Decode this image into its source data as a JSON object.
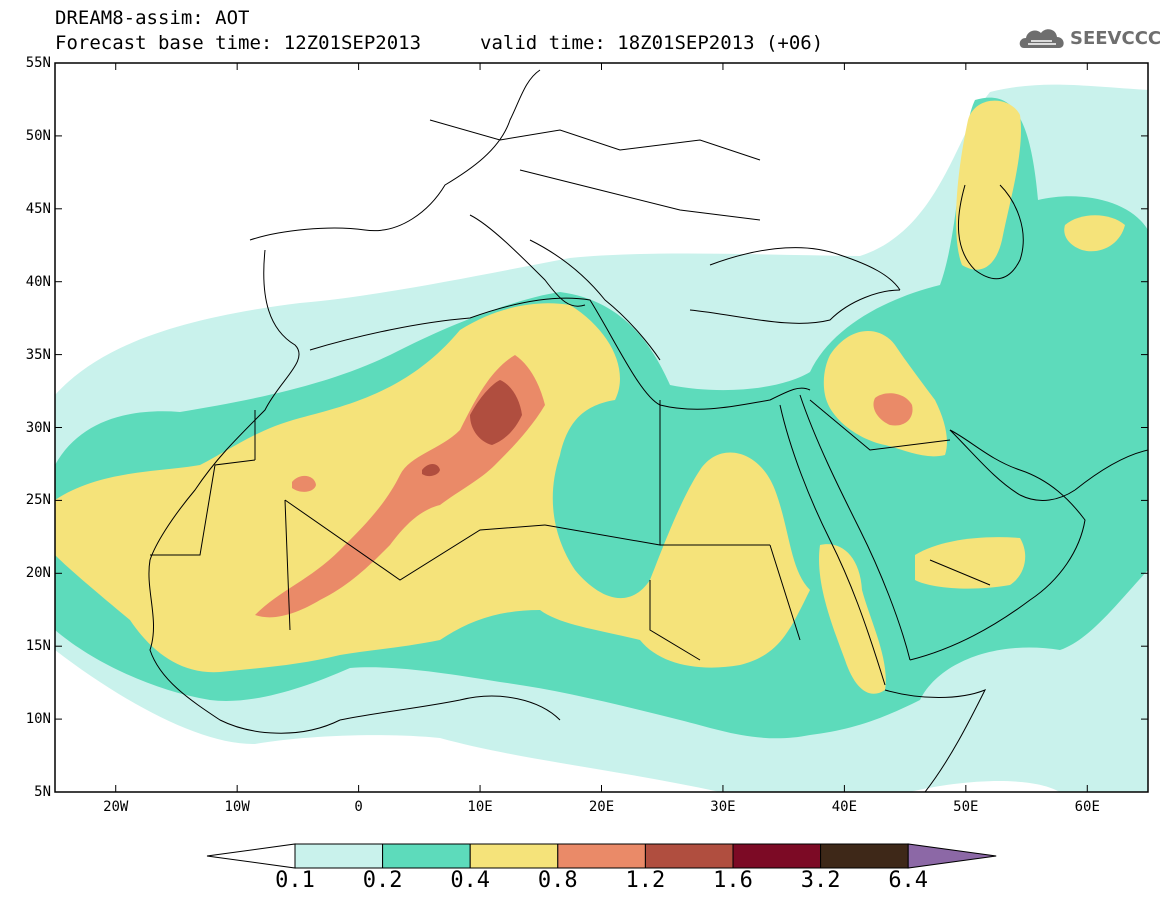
{
  "header": {
    "title_line1": "DREAM8-assim: AOT",
    "title_line2": "Forecast base time: 12Z01SEP2013",
    "valid_time": "valid time: 18Z01SEP2013 (+06)",
    "logo_text": "SEEVCCC"
  },
  "map": {
    "lon_range": [
      -25,
      65
    ],
    "lat_range": [
      5,
      55
    ],
    "lat_ticks": [
      "55N",
      "50N",
      "45N",
      "40N",
      "35N",
      "30N",
      "25N",
      "20N",
      "15N",
      "10N",
      "5N"
    ],
    "lon_ticks": [
      "20W",
      "10W",
      "0",
      "10E",
      "20E",
      "30E",
      "40E",
      "50E",
      "60E"
    ]
  },
  "colorbar": {
    "labels": [
      "0.1",
      "0.2",
      "0.4",
      "0.8",
      "1.2",
      "1.6",
      "3.2",
      "6.4"
    ],
    "colors": [
      "#c9f2ec",
      "#5ddbbb",
      "#f5e37a",
      "#ea8a68",
      "#b04e3f",
      "#7c0a25",
      "#3e2818",
      "#8c68a6"
    ]
  }
}
